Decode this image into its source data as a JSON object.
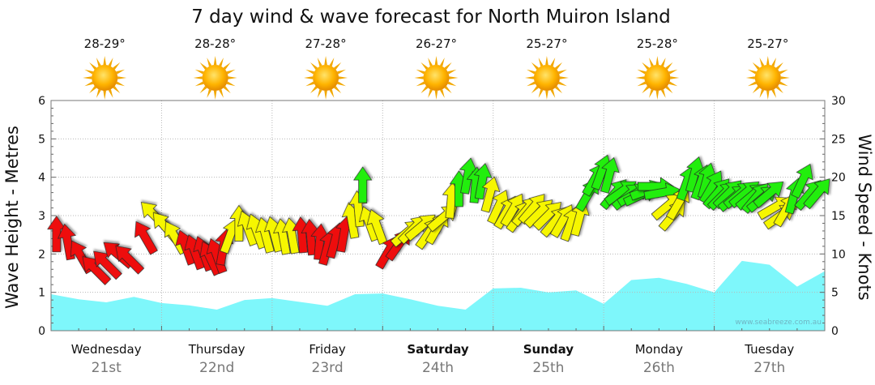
{
  "chart_data": {
    "type": "area",
    "title": "7 day wind & wave forecast for North Muiron Island",
    "ylabel_left": "Wave Height - Metres",
    "ylabel_right": "Wind Speed - Knots",
    "ylim_left": [
      0,
      6
    ],
    "ylim_right": [
      0,
      30
    ],
    "yticks_left": [
      "0",
      "1",
      "2",
      "3",
      "4",
      "5",
      "6"
    ],
    "yticks_right": [
      "0",
      "5",
      "10",
      "15",
      "20",
      "25",
      "30"
    ],
    "grid": true,
    "watermark": "www.seabreeze.com.au",
    "colors": {
      "wave_fill": "#7ef7fb",
      "calm": "#ee1111",
      "moderate": "#f6f600",
      "strong": "#22ee11",
      "sun": "#f7b500"
    },
    "days": [
      {
        "day": "Wednesday",
        "date": "21st",
        "temp": "28-29°",
        "bold": false,
        "icon": "sun-icon"
      },
      {
        "day": "Thursday",
        "date": "22nd",
        "temp": "28-28°",
        "bold": false,
        "icon": "sun-icon"
      },
      {
        "day": "Friday",
        "date": "23rd",
        "temp": "27-28°",
        "bold": false,
        "icon": "sun-icon"
      },
      {
        "day": "Saturday",
        "date": "24th",
        "temp": "26-27°",
        "bold": true,
        "icon": "sun-icon"
      },
      {
        "day": "Sunday",
        "date": "25th",
        "temp": "25-27°",
        "bold": true,
        "icon": "sun-icon"
      },
      {
        "day": "Monday",
        "date": "26th",
        "temp": "25-28°",
        "bold": false,
        "icon": "sun-icon"
      },
      {
        "day": "Tuesday",
        "date": "27th",
        "temp": "25-27°",
        "bold": false,
        "icon": "sun-icon"
      }
    ],
    "wave_height": {
      "x": [
        0,
        0.25,
        0.5,
        0.75,
        1,
        1.25,
        1.5,
        1.75,
        2,
        2.25,
        2.5,
        2.75,
        3,
        3.25,
        3.5,
        3.75,
        4,
        4.25,
        4.5,
        4.75,
        5,
        5.25,
        5.5,
        5.75,
        6,
        6.25,
        6.5,
        6.75,
        7
      ],
      "values": [
        0.95,
        0.82,
        0.74,
        0.88,
        0.72,
        0.66,
        0.55,
        0.8,
        0.85,
        0.75,
        0.65,
        0.95,
        0.97,
        0.82,
        0.65,
        0.55,
        1.1,
        1.12,
        1.0,
        1.05,
        0.7,
        1.32,
        1.38,
        1.22,
        1.0,
        1.82,
        1.72,
        1.15,
        1.55
      ]
    },
    "wind": [
      {
        "t": 0.05,
        "knots": 12.6,
        "dir": 180,
        "c": "red"
      },
      {
        "t": 0.15,
        "knots": 11.6,
        "dir": 190,
        "c": "red"
      },
      {
        "t": 0.27,
        "knots": 9.7,
        "dir": 210,
        "c": "red"
      },
      {
        "t": 0.4,
        "knots": 8.0,
        "dir": 225,
        "c": "red"
      },
      {
        "t": 0.5,
        "knots": 8.7,
        "dir": 225,
        "c": "red"
      },
      {
        "t": 0.6,
        "knots": 10.0,
        "dir": 230,
        "c": "red"
      },
      {
        "t": 0.7,
        "knots": 9.4,
        "dir": 225,
        "c": "red"
      },
      {
        "t": 0.85,
        "knots": 12.2,
        "dir": 210,
        "c": "red"
      },
      {
        "t": 0.93,
        "knots": 15.1,
        "dir": 225,
        "c": "yellow"
      },
      {
        "t": 1.03,
        "knots": 13.6,
        "dir": 220,
        "c": "yellow"
      },
      {
        "t": 1.12,
        "knots": 12.2,
        "dir": 210,
        "c": "yellow"
      },
      {
        "t": 1.22,
        "knots": 10.9,
        "dir": 200,
        "c": "red"
      },
      {
        "t": 1.3,
        "knots": 10.3,
        "dir": 200,
        "c": "red"
      },
      {
        "t": 1.38,
        "knots": 10.1,
        "dir": 200,
        "c": "red"
      },
      {
        "t": 1.44,
        "knots": 9.5,
        "dir": 205,
        "c": "red"
      },
      {
        "t": 1.5,
        "knots": 9.8,
        "dir": 200,
        "c": "red"
      },
      {
        "t": 1.56,
        "knots": 10.9,
        "dir": 170,
        "c": "red"
      },
      {
        "t": 1.62,
        "knots": 12.4,
        "dir": 160,
        "c": "yellow"
      },
      {
        "t": 1.7,
        "knots": 14.0,
        "dir": 180,
        "c": "yellow"
      },
      {
        "t": 1.78,
        "knots": 13.4,
        "dir": 200,
        "c": "yellow"
      },
      {
        "t": 1.86,
        "knots": 13.0,
        "dir": 200,
        "c": "yellow"
      },
      {
        "t": 1.94,
        "knots": 12.5,
        "dir": 195,
        "c": "yellow"
      },
      {
        "t": 2.02,
        "knots": 12.6,
        "dir": 195,
        "c": "yellow"
      },
      {
        "t": 2.1,
        "knots": 12.3,
        "dir": 190,
        "c": "yellow"
      },
      {
        "t": 2.18,
        "knots": 12.4,
        "dir": 190,
        "c": "yellow"
      },
      {
        "t": 2.27,
        "knots": 12.5,
        "dir": 185,
        "c": "red"
      },
      {
        "t": 2.35,
        "knots": 12.2,
        "dir": 185,
        "c": "red"
      },
      {
        "t": 2.43,
        "knots": 11.6,
        "dir": 175,
        "c": "red"
      },
      {
        "t": 2.5,
        "knots": 10.9,
        "dir": 165,
        "c": "red"
      },
      {
        "t": 2.57,
        "knots": 11.8,
        "dir": 165,
        "c": "red"
      },
      {
        "t": 2.65,
        "knots": 12.6,
        "dir": 170,
        "c": "red"
      },
      {
        "t": 2.72,
        "knots": 14.4,
        "dir": 190,
        "c": "yellow"
      },
      {
        "t": 2.78,
        "knots": 15.9,
        "dir": 185,
        "c": "yellow"
      },
      {
        "t": 2.82,
        "knots": 19.0,
        "dir": 180,
        "c": "green"
      },
      {
        "t": 2.88,
        "knots": 14.0,
        "dir": 200,
        "c": "yellow"
      },
      {
        "t": 2.95,
        "knots": 13.6,
        "dir": 200,
        "c": "yellow"
      },
      {
        "t": 3.05,
        "knots": 10.3,
        "dir": 150,
        "c": "red"
      },
      {
        "t": 3.15,
        "knots": 11.3,
        "dir": 145,
        "c": "red"
      },
      {
        "t": 3.22,
        "knots": 12.8,
        "dir": 130,
        "c": "yellow"
      },
      {
        "t": 3.28,
        "knots": 13.3,
        "dir": 135,
        "c": "yellow"
      },
      {
        "t": 3.35,
        "knots": 13.6,
        "dir": 130,
        "c": "yellow"
      },
      {
        "t": 3.42,
        "knots": 12.8,
        "dir": 145,
        "c": "yellow"
      },
      {
        "t": 3.5,
        "knots": 13.5,
        "dir": 150,
        "c": "yellow"
      },
      {
        "t": 3.55,
        "knots": 14.8,
        "dir": 130,
        "c": "yellow"
      },
      {
        "t": 3.62,
        "knots": 17.0,
        "dir": 175,
        "c": "yellow"
      },
      {
        "t": 3.69,
        "knots": 18.5,
        "dir": 180,
        "c": "green"
      },
      {
        "t": 3.77,
        "knots": 20.2,
        "dir": 170,
        "c": "green"
      },
      {
        "t": 3.84,
        "knots": 19.0,
        "dir": 175,
        "c": "green"
      },
      {
        "t": 3.9,
        "knots": 19.5,
        "dir": 170,
        "c": "green"
      },
      {
        "t": 3.97,
        "knots": 17.8,
        "dir": 165,
        "c": "yellow"
      },
      {
        "t": 4.05,
        "knots": 16.2,
        "dir": 155,
        "c": "yellow"
      },
      {
        "t": 4.12,
        "knots": 15.5,
        "dir": 150,
        "c": "yellow"
      },
      {
        "t": 4.18,
        "knots": 15.8,
        "dir": 150,
        "c": "yellow"
      },
      {
        "t": 4.24,
        "knots": 15.0,
        "dir": 145,
        "c": "yellow"
      },
      {
        "t": 4.3,
        "knots": 15.7,
        "dir": 140,
        "c": "yellow"
      },
      {
        "t": 4.36,
        "knots": 16.0,
        "dir": 140,
        "c": "yellow"
      },
      {
        "t": 4.42,
        "knots": 15.4,
        "dir": 135,
        "c": "yellow"
      },
      {
        "t": 4.5,
        "knots": 15.1,
        "dir": 135,
        "c": "yellow"
      },
      {
        "t": 4.56,
        "knots": 14.3,
        "dir": 140,
        "c": "yellow"
      },
      {
        "t": 4.63,
        "knots": 14.4,
        "dir": 150,
        "c": "yellow"
      },
      {
        "t": 4.7,
        "knots": 14.0,
        "dir": 160,
        "c": "yellow"
      },
      {
        "t": 4.78,
        "knots": 14.7,
        "dir": 165,
        "c": "yellow"
      },
      {
        "t": 4.86,
        "knots": 17.8,
        "dir": 150,
        "c": "green"
      },
      {
        "t": 4.92,
        "knots": 19.8,
        "dir": 150,
        "c": "green"
      },
      {
        "t": 4.98,
        "knots": 20.7,
        "dir": 160,
        "c": "green"
      },
      {
        "t": 5.05,
        "knots": 20.3,
        "dir": 165,
        "c": "green"
      },
      {
        "t": 5.1,
        "knots": 17.9,
        "dir": 140,
        "c": "green"
      },
      {
        "t": 5.16,
        "knots": 18.1,
        "dir": 125,
        "c": "green"
      },
      {
        "t": 5.22,
        "knots": 17.6,
        "dir": 130,
        "c": "green"
      },
      {
        "t": 5.28,
        "knots": 17.8,
        "dir": 120,
        "c": "green"
      },
      {
        "t": 5.34,
        "knots": 17.7,
        "dir": 115,
        "c": "green"
      },
      {
        "t": 5.4,
        "knots": 18.3,
        "dir": 110,
        "c": "green"
      },
      {
        "t": 5.47,
        "knots": 18.8,
        "dir": 90,
        "c": "green"
      },
      {
        "t": 5.53,
        "knots": 18.0,
        "dir": 100,
        "c": "green"
      },
      {
        "t": 5.58,
        "knots": 16.3,
        "dir": 130,
        "c": "yellow"
      },
      {
        "t": 5.63,
        "knots": 15.1,
        "dir": 140,
        "c": "yellow"
      },
      {
        "t": 5.68,
        "knots": 16.7,
        "dir": 150,
        "c": "yellow"
      },
      {
        "t": 5.75,
        "knots": 19.3,
        "dir": 160,
        "c": "green"
      },
      {
        "t": 5.82,
        "knots": 20.4,
        "dir": 165,
        "c": "green"
      },
      {
        "t": 5.88,
        "knots": 19.4,
        "dir": 160,
        "c": "green"
      },
      {
        "t": 5.93,
        "knots": 19.6,
        "dir": 165,
        "c": "green"
      },
      {
        "t": 5.98,
        "knots": 18.8,
        "dir": 150,
        "c": "green"
      },
      {
        "t": 6.03,
        "knots": 18.0,
        "dir": 140,
        "c": "green"
      },
      {
        "t": 6.08,
        "knots": 17.7,
        "dir": 135,
        "c": "green"
      },
      {
        "t": 6.13,
        "knots": 17.9,
        "dir": 135,
        "c": "green"
      },
      {
        "t": 6.18,
        "knots": 17.4,
        "dir": 130,
        "c": "green"
      },
      {
        "t": 6.23,
        "knots": 17.8,
        "dir": 130,
        "c": "green"
      },
      {
        "t": 6.28,
        "knots": 17.9,
        "dir": 130,
        "c": "green"
      },
      {
        "t": 6.34,
        "knots": 17.6,
        "dir": 130,
        "c": "green"
      },
      {
        "t": 6.38,
        "knots": 17.4,
        "dir": 140,
        "c": "green"
      },
      {
        "t": 6.44,
        "knots": 17.3,
        "dir": 130,
        "c": "green"
      },
      {
        "t": 6.5,
        "knots": 17.9,
        "dir": 130,
        "c": "green"
      },
      {
        "t": 6.55,
        "knots": 16.1,
        "dir": 120,
        "c": "yellow"
      },
      {
        "t": 6.6,
        "knots": 15.0,
        "dir": 125,
        "c": "yellow"
      },
      {
        "t": 6.65,
        "knots": 15.8,
        "dir": 150,
        "c": "yellow"
      },
      {
        "t": 6.72,
        "knots": 17.6,
        "dir": 165,
        "c": "green"
      },
      {
        "t": 6.8,
        "knots": 19.6,
        "dir": 155,
        "c": "green"
      },
      {
        "t": 6.86,
        "knots": 17.8,
        "dir": 140,
        "c": "green"
      },
      {
        "t": 6.94,
        "knots": 18.0,
        "dir": 140,
        "c": "green"
      }
    ]
  }
}
